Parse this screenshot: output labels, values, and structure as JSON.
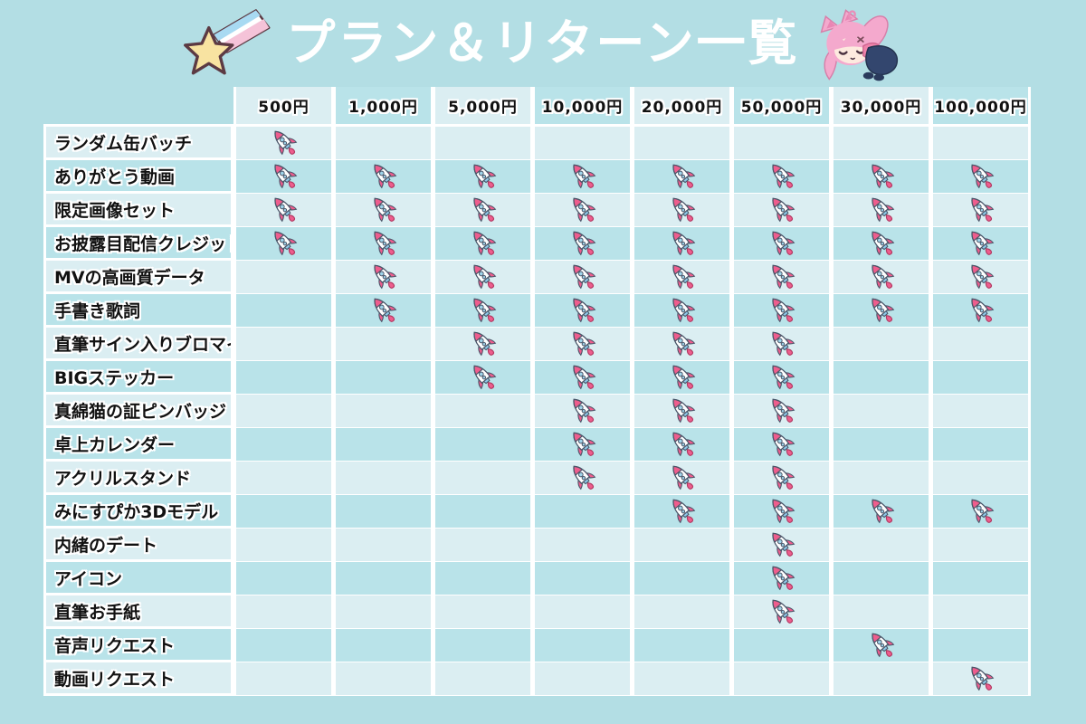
{
  "title": "プラン＆リターン一覧",
  "icons": {
    "left_of_title": "shooting-star-icon",
    "right_of_title": "mascot-catgirl-character",
    "cell_mark": "rocket-icon"
  },
  "colors": {
    "page_bg": "#b3dee4",
    "cell_light": "#dbeef2",
    "cell_dark": "#b9e3e9",
    "grid_gap": "#ffffff",
    "label_text": "#111111",
    "title_text": "#ffffff",
    "rocket_pink": "#ee5d8d",
    "rocket_blue": "#9fd4ea",
    "star_yellow": "#f8e3a1",
    "hair_pink": "#f4a9cd",
    "outfit_navy": "#33466e"
  },
  "chart_data": {
    "type": "table",
    "title": "プラン＆リターン一覧",
    "legend_position": "none",
    "grid": true,
    "columns": [
      "500円",
      "1,000円",
      "5,000円",
      "10,000円",
      "20,000円",
      "50,000円",
      "30,000円",
      "100,000円"
    ],
    "mark_meaning": "reward included in plan (rocket icon)",
    "rows": [
      {
        "label": "ランダム缶バッチ",
        "included": [
          1,
          0,
          0,
          0,
          0,
          0,
          0,
          0
        ]
      },
      {
        "label": "ありがとう動画",
        "included": [
          1,
          1,
          1,
          1,
          1,
          1,
          1,
          1
        ]
      },
      {
        "label": "限定画像セット",
        "included": [
          1,
          1,
          1,
          1,
          1,
          1,
          1,
          1
        ]
      },
      {
        "label": "お披露目配信クレジット",
        "included": [
          1,
          1,
          1,
          1,
          1,
          1,
          1,
          1
        ]
      },
      {
        "label": "MVの高画質データ",
        "included": [
          0,
          1,
          1,
          1,
          1,
          1,
          1,
          1
        ]
      },
      {
        "label": "手書き歌詞",
        "included": [
          0,
          1,
          1,
          1,
          1,
          1,
          1,
          1
        ]
      },
      {
        "label": "直筆サイン入りブロマイド",
        "included": [
          0,
          0,
          1,
          1,
          1,
          1,
          0,
          0
        ]
      },
      {
        "label": "BIGステッカー",
        "included": [
          0,
          0,
          1,
          1,
          1,
          1,
          0,
          0
        ]
      },
      {
        "label": "真綿猫の証ピンバッジ",
        "included": [
          0,
          0,
          0,
          1,
          1,
          1,
          0,
          0
        ]
      },
      {
        "label": "卓上カレンダー",
        "included": [
          0,
          0,
          0,
          1,
          1,
          1,
          0,
          0
        ]
      },
      {
        "label": "アクリルスタンド",
        "included": [
          0,
          0,
          0,
          1,
          1,
          1,
          0,
          0
        ]
      },
      {
        "label": "みにすぴか3Dモデル",
        "included": [
          0,
          0,
          0,
          0,
          1,
          1,
          1,
          1
        ]
      },
      {
        "label": "内緒のデート",
        "included": [
          0,
          0,
          0,
          0,
          0,
          1,
          0,
          0
        ]
      },
      {
        "label": "アイコン",
        "included": [
          0,
          0,
          0,
          0,
          0,
          1,
          0,
          0
        ]
      },
      {
        "label": "直筆お手紙",
        "included": [
          0,
          0,
          0,
          0,
          0,
          1,
          0,
          0
        ]
      },
      {
        "label": "音声リクエスト",
        "included": [
          0,
          0,
          0,
          0,
          0,
          0,
          1,
          0
        ]
      },
      {
        "label": "動画リクエスト",
        "included": [
          0,
          0,
          0,
          0,
          0,
          0,
          0,
          1
        ]
      }
    ]
  }
}
